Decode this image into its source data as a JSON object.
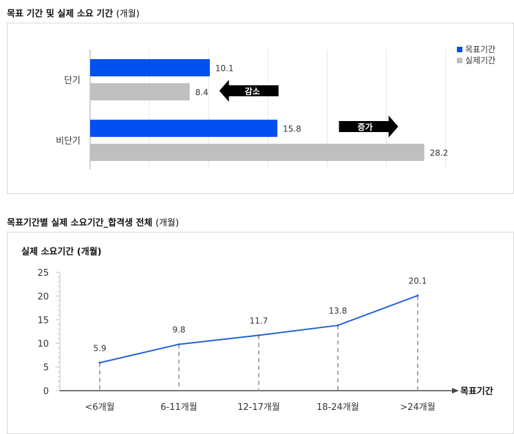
{
  "chart_data": [
    {
      "type": "bar",
      "orientation": "horizontal",
      "title": "목표 기간 및 실제 소요 기간",
      "unit": "(개월)",
      "categories": [
        "단기",
        "비단기"
      ],
      "series": [
        {
          "name": "목표기간",
          "color": "#0050f0",
          "values": [
            10.1,
            15.8
          ]
        },
        {
          "name": "실제기간",
          "color": "#bfbfbf",
          "values": [
            8.4,
            28.2
          ]
        }
      ],
      "annotations": [
        {
          "text": "감소",
          "direction": "left",
          "category": "단기"
        },
        {
          "text": "증가",
          "direction": "right",
          "category": "비단기"
        }
      ],
      "xlim": [
        0,
        30
      ],
      "legend": "top-right",
      "grid": true
    },
    {
      "type": "line",
      "title": "목표기간별 실제 소요기간_합격생 전체",
      "unit": "(개월)",
      "ylabel": "실제 소요기간 (개월)",
      "xlabel": "목표기간",
      "categories": [
        "<6개월",
        "6-11개월",
        "12-17개월",
        "18-24개월",
        ">24개월"
      ],
      "series": [
        {
          "color": "#1f5fd6",
          "values": [
            5.9,
            9.8,
            11.7,
            13.8,
            20.1
          ]
        }
      ],
      "ylim": [
        0,
        25
      ],
      "yticks": [
        0,
        5,
        10,
        15,
        20,
        25
      ],
      "grid": false
    }
  ]
}
